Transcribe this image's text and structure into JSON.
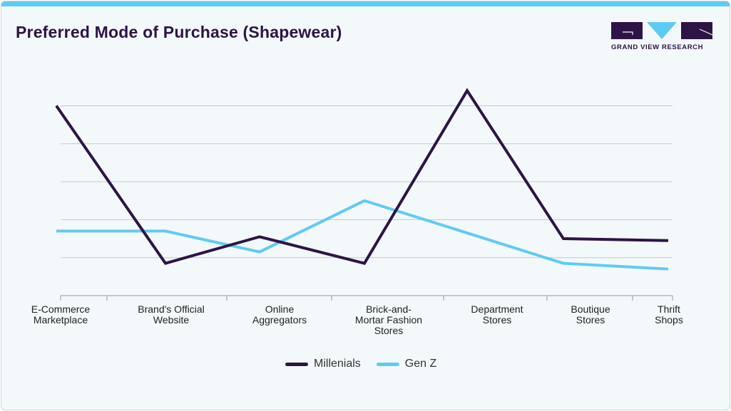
{
  "title": "Preferred Mode of Purchase (Shapewear)",
  "logo": {
    "text": "GRAND VIEW RESEARCH"
  },
  "colors": {
    "accent": "#5ecbf5",
    "millenials": "#2e1446",
    "genz": "#5ecbf5",
    "grid": "#c5c9cf"
  },
  "chart_data": {
    "type": "line",
    "title": "Preferred Mode of Purchase (Shapewear)",
    "categories": [
      [
        "E-Commerce",
        "Marketplace"
      ],
      [
        "Brand's Official",
        "Website"
      ],
      [
        "Online",
        "Aggregators"
      ],
      [
        "Brick-and-",
        "Mortar Fashion",
        "Stores"
      ],
      [
        "Department",
        "Stores"
      ],
      [
        "Boutique",
        "Stores"
      ],
      [
        "Thrift",
        "Shops"
      ]
    ],
    "series": [
      {
        "name": "Millenials",
        "values": [
          5.0,
          0.85,
          1.55,
          0.85,
          5.4,
          1.5,
          1.45
        ]
      },
      {
        "name": "Gen Z",
        "values": [
          1.7,
          1.7,
          1.15,
          2.5,
          1.65,
          0.85,
          0.7
        ]
      }
    ],
    "ylim": [
      0,
      5
    ],
    "y_tick_labels_shown": false,
    "grid": true,
    "legend": "bottom-center"
  }
}
